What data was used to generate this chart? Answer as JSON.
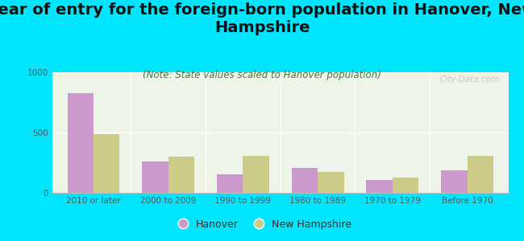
{
  "title": "Year of entry for the foreign-born population in Hanover, New\nHampshire",
  "subtitle": "(Note: State values scaled to Hanover population)",
  "categories": [
    "2010 or later",
    "2000 to 2009",
    "1990 to 1999",
    "1980 to 1989",
    "1970 to 1979",
    "Before 1970"
  ],
  "hanover_values": [
    830,
    260,
    155,
    210,
    110,
    185
  ],
  "nh_values": [
    490,
    300,
    305,
    175,
    130,
    310
  ],
  "hanover_color": "#cc99cc",
  "nh_color": "#cccc88",
  "background_color": "#00e5ff",
  "plot_bg": "#eef5e8",
  "ylim": [
    0,
    1000
  ],
  "yticks": [
    0,
    500,
    1000
  ],
  "title_fontsize": 14,
  "subtitle_fontsize": 8.5,
  "legend_fontsize": 9,
  "axis_label_fontsize": 7.5,
  "bar_width": 0.35,
  "watermark": "City-Data.com"
}
